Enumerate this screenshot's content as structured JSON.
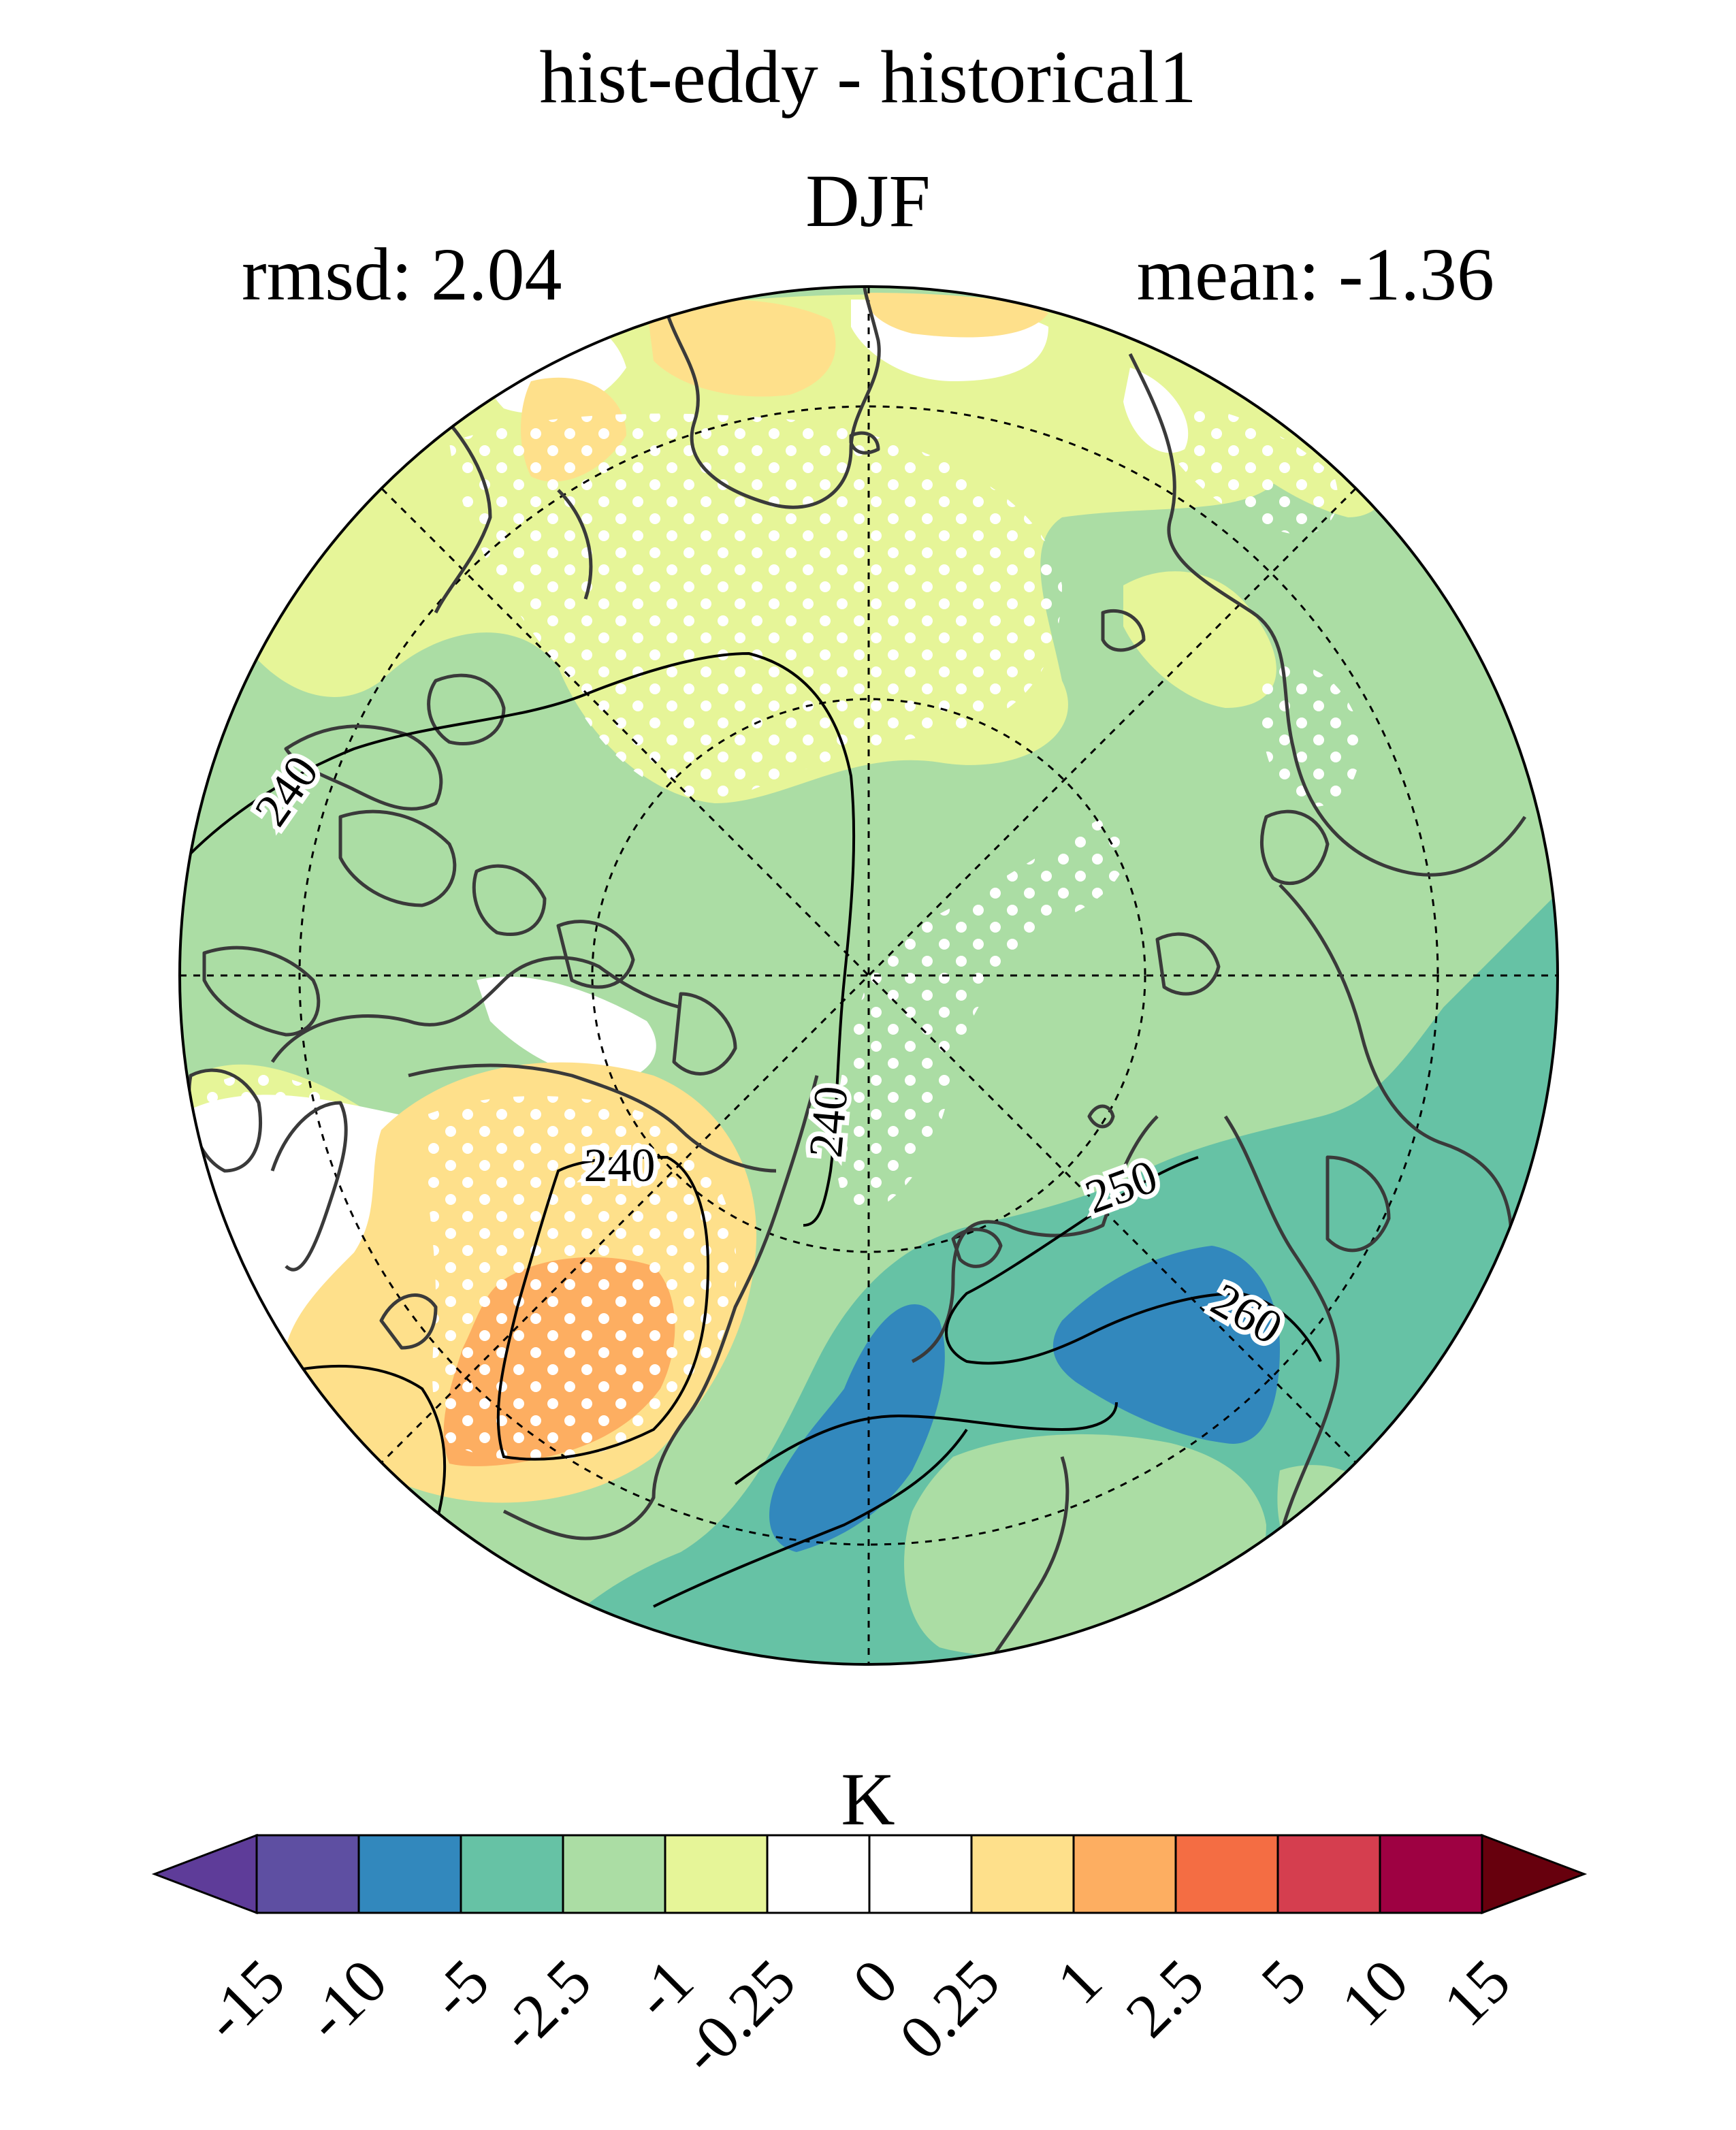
{
  "header": {
    "title": "hist-eddy - historical1",
    "season": "DJF",
    "rmsd_text": "rmsd: 2.04",
    "mean_text": "mean: -1.36"
  },
  "map": {
    "projection": "north-polar-stereographic",
    "stipple_color": "#ffffff",
    "coast_color": "#3a3a3a",
    "contours": [
      {
        "label": "240"
      },
      {
        "label": "240"
      },
      {
        "label": "240"
      },
      {
        "label": "250"
      },
      {
        "label": "260"
      }
    ]
  },
  "colorbar": {
    "unit": "K",
    "extend": "both",
    "ticks": [
      "-15",
      "-10",
      "-5",
      "-2.5",
      "-1",
      "-0.25",
      "0",
      "0.25",
      "1",
      "2.5",
      "5",
      "10",
      "15"
    ],
    "colors": [
      "#5e3c99",
      "#5e4fa2",
      "#3288bd",
      "#66c2a5",
      "#abdda4",
      "#e6f598",
      "#ffffff",
      "#ffffff",
      "#fee08b",
      "#fdae61",
      "#f46d43",
      "#d53e4f",
      "#9e0142",
      "#67000d"
    ]
  }
}
